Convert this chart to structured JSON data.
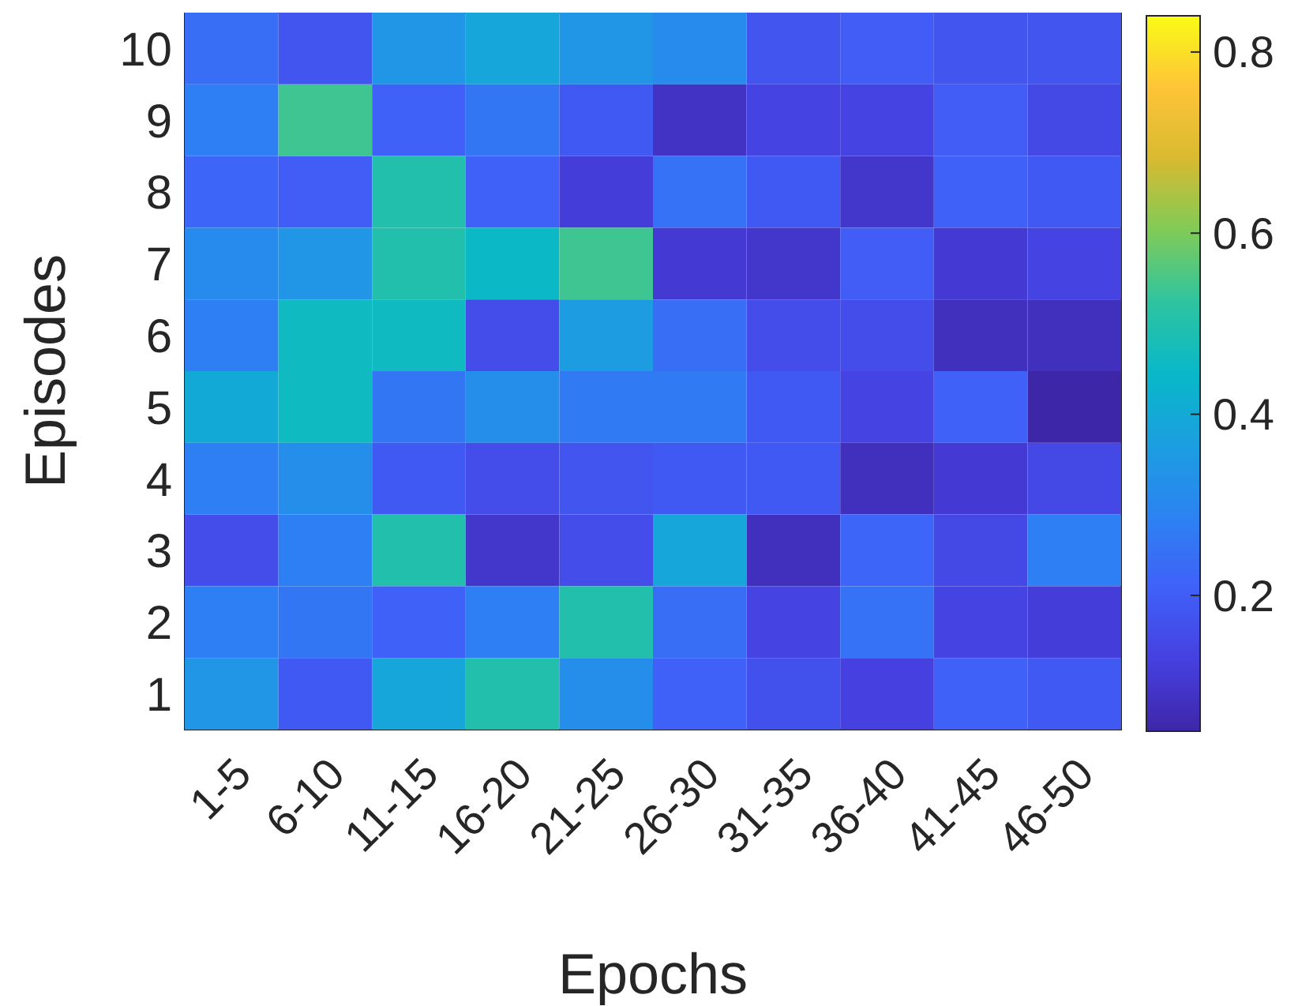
{
  "chart_data": {
    "type": "heatmap",
    "xlabel": "Epochs",
    "ylabel": "Episodes",
    "categories": [
      "1-5",
      "6-10",
      "11-15",
      "16-20",
      "21-25",
      "26-30",
      "31-35",
      "36-40",
      "41-45",
      "46-50"
    ],
    "y_categories": [
      "10",
      "9",
      "8",
      "7",
      "6",
      "5",
      "4",
      "3",
      "2",
      "1"
    ],
    "cells": [
      [
        0.24,
        0.18,
        0.34,
        0.39,
        0.34,
        0.31,
        0.18,
        0.2,
        0.18,
        0.18
      ],
      [
        0.28,
        0.54,
        0.21,
        0.26,
        0.19,
        0.09,
        0.14,
        0.14,
        0.2,
        0.15
      ],
      [
        0.22,
        0.2,
        0.5,
        0.21,
        0.12,
        0.25,
        0.19,
        0.1,
        0.21,
        0.19
      ],
      [
        0.31,
        0.34,
        0.5,
        0.45,
        0.54,
        0.11,
        0.1,
        0.2,
        0.11,
        0.14
      ],
      [
        0.28,
        0.46,
        0.46,
        0.16,
        0.36,
        0.24,
        0.16,
        0.16,
        0.08,
        0.08
      ],
      [
        0.4,
        0.46,
        0.26,
        0.32,
        0.27,
        0.27,
        0.19,
        0.14,
        0.21,
        0.05
      ],
      [
        0.28,
        0.32,
        0.19,
        0.16,
        0.18,
        0.19,
        0.19,
        0.08,
        0.11,
        0.15
      ],
      [
        0.16,
        0.28,
        0.5,
        0.1,
        0.16,
        0.39,
        0.08,
        0.22,
        0.15,
        0.28
      ],
      [
        0.28,
        0.26,
        0.21,
        0.28,
        0.5,
        0.24,
        0.14,
        0.25,
        0.14,
        0.12
      ],
      [
        0.34,
        0.19,
        0.39,
        0.5,
        0.32,
        0.21,
        0.17,
        0.13,
        0.21,
        0.19
      ]
    ],
    "clim": [
      0.05,
      0.84
    ],
    "cticks": [
      0.2,
      0.4,
      0.6,
      0.8
    ]
  }
}
